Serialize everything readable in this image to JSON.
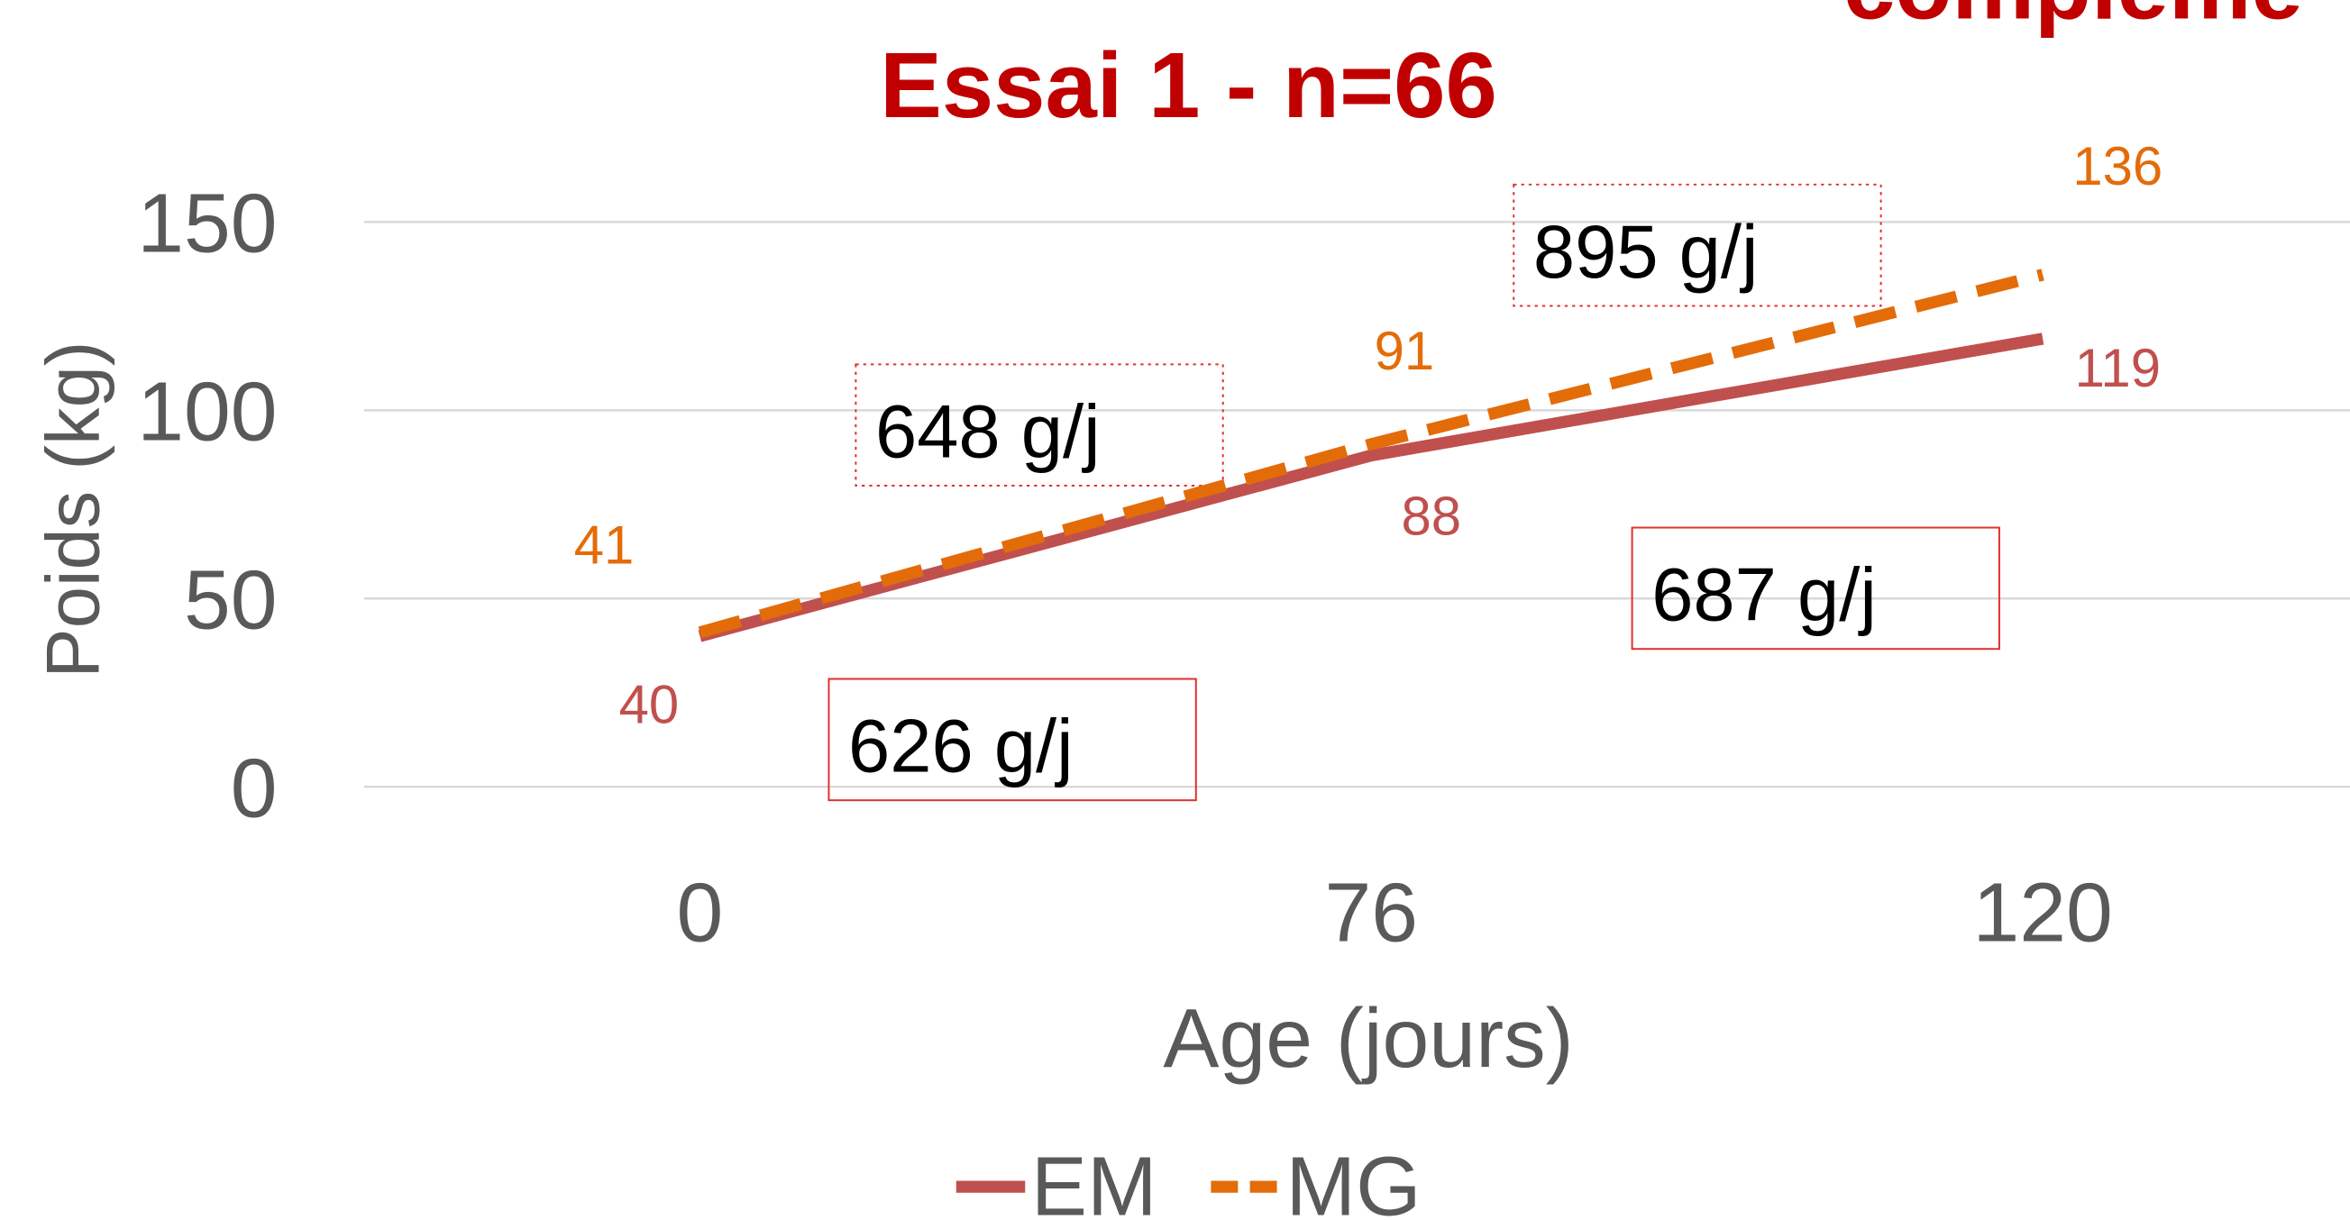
{
  "chart_data": {
    "type": "line",
    "title": "Essai 1 - n=66",
    "corner_text": "compleme",
    "x_label": "Age (jours)",
    "y_label": "Poids (kg)",
    "categories": [
      "0",
      "76",
      "120"
    ],
    "series": [
      {
        "name": "EM",
        "color": "#c0504d",
        "dashed": false,
        "values": [
          40,
          88,
          119
        ]
      },
      {
        "name": "MG",
        "color": "#e36c09",
        "dashed": true,
        "values": [
          41,
          91,
          136
        ]
      }
    ],
    "ylim": [
      0,
      150
    ],
    "yticks": [
      0,
      50,
      100,
      150
    ],
    "grid": true,
    "legend": "bottom",
    "annotations": [
      "626 g/j",
      "648 g/j",
      "895 g/j",
      "687 g/j"
    ]
  }
}
